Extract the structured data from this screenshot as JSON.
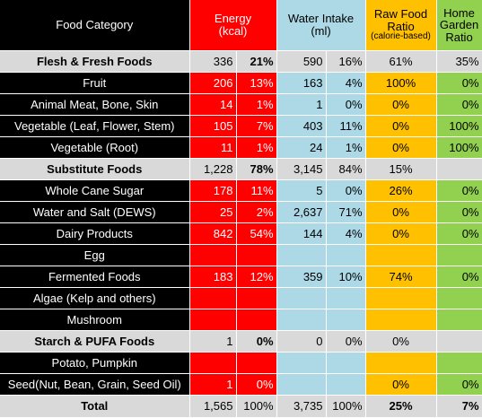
{
  "header": {
    "category": "Food Category",
    "energy_l1": "Energy",
    "energy_l2": "(kcal)",
    "water_l1": "Water Intake",
    "water_l2": "(ml)",
    "raw_l1": "Raw Food",
    "raw_l2": "Ratio",
    "raw_l3": "(calorie-based)",
    "home_l1": "Home",
    "home_l2": "Garden",
    "home_l3": "Ratio"
  },
  "rows": [
    {
      "category": "Flesh & Fresh Foods",
      "energy": "336",
      "energy_pct": "21%",
      "water": "590",
      "water_pct": "16%",
      "raw": "61%",
      "home": "35%"
    },
    {
      "category": "Fruit",
      "energy": "206",
      "energy_pct": "13%",
      "water": "163",
      "water_pct": "4%",
      "raw": "100%",
      "home": "0%"
    },
    {
      "category": "Animal Meat, Bone, Skin",
      "energy": "14",
      "energy_pct": "1%",
      "water": "1",
      "water_pct": "0%",
      "raw": "0%",
      "home": "0%"
    },
    {
      "category": "Vegetable (Leaf, Flower, Stem)",
      "energy": "105",
      "energy_pct": "7%",
      "water": "403",
      "water_pct": "11%",
      "raw": "0%",
      "home": "100%"
    },
    {
      "category": "Vegetable (Root)",
      "energy": "11",
      "energy_pct": "1%",
      "water": "24",
      "water_pct": "1%",
      "raw": "0%",
      "home": "100%"
    },
    {
      "category": "Substitute Foods",
      "energy": "1,228",
      "energy_pct": "78%",
      "water": "3,145",
      "water_pct": "84%",
      "raw": "15%",
      "home": ""
    },
    {
      "category": "Whole Cane Sugar",
      "energy": "178",
      "energy_pct": "11%",
      "water": "5",
      "water_pct": "0%",
      "raw": "26%",
      "home": "0%"
    },
    {
      "category": "Water and Salt (DEWS)",
      "energy": "25",
      "energy_pct": "2%",
      "water": "2,637",
      "water_pct": "71%",
      "raw": "0%",
      "home": "0%"
    },
    {
      "category": "Dairy Products",
      "energy": "842",
      "energy_pct": "54%",
      "water": "144",
      "water_pct": "4%",
      "raw": "0%",
      "home": "0%"
    },
    {
      "category": "Egg",
      "energy": "",
      "energy_pct": "",
      "water": "",
      "water_pct": "",
      "raw": "",
      "home": ""
    },
    {
      "category": "Fermented Foods",
      "energy": "183",
      "energy_pct": "12%",
      "water": "359",
      "water_pct": "10%",
      "raw": "74%",
      "home": "0%"
    },
    {
      "category": "Algae (Kelp and others)",
      "energy": "",
      "energy_pct": "",
      "water": "",
      "water_pct": "",
      "raw": "",
      "home": ""
    },
    {
      "category": "Mushroom",
      "energy": "",
      "energy_pct": "",
      "water": "",
      "water_pct": "",
      "raw": "",
      "home": ""
    },
    {
      "category": "Starch & PUFA Foods",
      "energy": "1",
      "energy_pct": "0%",
      "water": "0",
      "water_pct": "0%",
      "raw": "0%",
      "home": ""
    },
    {
      "category": "Potato, Pumpkin",
      "energy": "",
      "energy_pct": "",
      "water": "",
      "water_pct": "",
      "raw": "",
      "home": ""
    },
    {
      "category": "Seed(Nut, Bean, Grain, Seed Oil)",
      "energy": "1",
      "energy_pct": "0%",
      "water": "",
      "water_pct": "",
      "raw": "0%",
      "home": "0%"
    }
  ],
  "total": {
    "category": "Total",
    "energy": "1,565",
    "energy_pct": "100%",
    "water": "3,735",
    "water_pct": "100%",
    "raw": "25%",
    "home": "7%"
  },
  "colors": {
    "black": "#000000",
    "grey": "#d9d9d9",
    "red": "#ff0000",
    "blue": "#add8e6",
    "orange": "#ffc000",
    "green": "#92d050"
  }
}
